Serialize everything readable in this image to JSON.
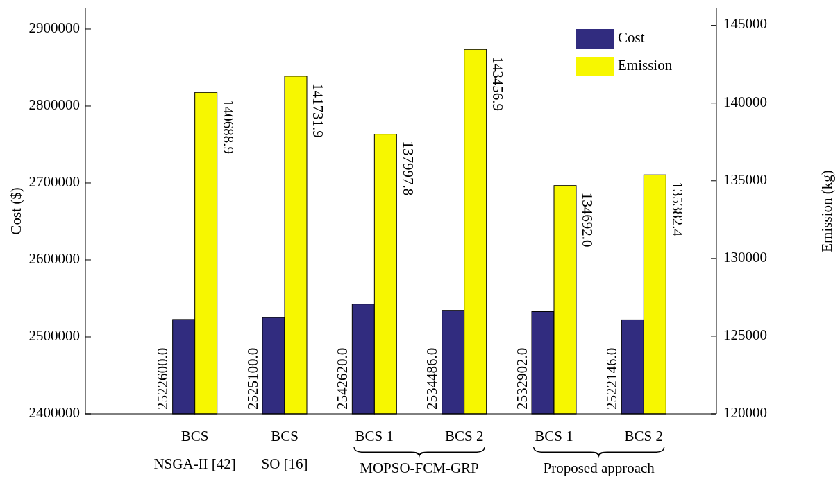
{
  "chart_data": {
    "type": "bar",
    "ylabel": "Cost ($)",
    "y2label": "Emission (kg)",
    "categories": [
      "BCS",
      "BCS",
      "BCS 1",
      "BCS 2",
      "BCS 1",
      "BCS 2"
    ],
    "series": [
      {
        "name": "Cost",
        "color": "#312c7f",
        "values": [
          2522600,
          2525100,
          2542620,
          2534486,
          2532902,
          2522146
        ],
        "value_labels": [
          "2522600.0",
          "2525100.0",
          "2542620.0",
          "2534486.0",
          "2532902.0",
          "2522146.0"
        ]
      },
      {
        "name": "Emission",
        "color": "#f7f700",
        "axis": "y2",
        "values": [
          140688.9,
          141731.9,
          137997.8,
          143456.9,
          134692.0,
          135382.4
        ],
        "value_labels": [
          "140688.9",
          "141731.9",
          "137997.8",
          "143456.9",
          "134692.0",
          "135382.4"
        ]
      }
    ],
    "ylim": [
      2400000,
      2927000
    ],
    "yticks": [
      2400000,
      2500000,
      2600000,
      2700000,
      2800000,
      2900000
    ],
    "y2lim": [
      120000,
      146100
    ],
    "y2ticks": [
      120000,
      125000,
      130000,
      135000,
      140000,
      145000
    ],
    "legend": "top right",
    "grid": false,
    "annotations": [
      "NSGA-II [42]",
      "SO [16]",
      "MOPSO-FCM-GRP",
      "Proposed approach"
    ]
  }
}
